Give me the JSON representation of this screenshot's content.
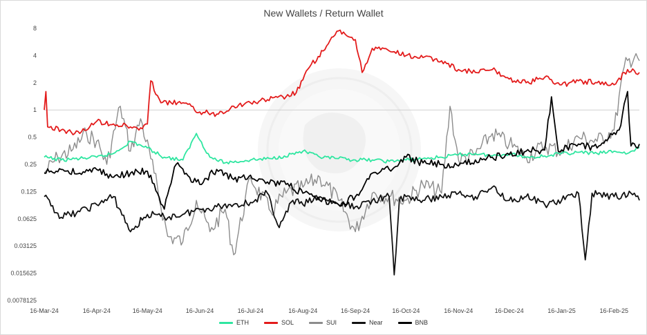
{
  "chart_data": {
    "type": "line",
    "title": "New Wallets / Return Wallet",
    "xlabel": "",
    "ylabel": "",
    "y_scale": "log2",
    "ylim": [
      0.0078125,
      8
    ],
    "y_ticks": [
      8,
      4,
      2,
      1,
      0.5,
      0.25,
      0.125,
      0.0625,
      0.03125,
      0.015625,
      0.0078125
    ],
    "y_tick_labels": [
      "8",
      "4",
      "2",
      "1",
      "0.5",
      "0.25",
      "0.125",
      "0.0625",
      "0.03125",
      "0.015625",
      "0.0078125"
    ],
    "x_range": [
      "2024-03-16",
      "2025-03-03"
    ],
    "x_ticks": [
      "2024-03-16",
      "2024-04-16",
      "2024-05-16",
      "2024-06-16",
      "2024-07-16",
      "2024-08-16",
      "2024-09-16",
      "2024-10-16",
      "2024-11-16",
      "2024-12-16",
      "2025-01-16",
      "2025-02-16"
    ],
    "x_tick_labels": [
      "16-Mar-24",
      "16-Apr-24",
      "16-May-24",
      "16-Jun-24",
      "16-Jul-24",
      "16-Aug-24",
      "16-Sep-24",
      "16-Oct-24",
      "16-Nov-24",
      "16-Dec-24",
      "16-Jan-25",
      "16-Feb-25"
    ],
    "reference_line": 1,
    "grid": "reference line at 1 only",
    "legend_position": "bottom",
    "series": [
      {
        "name": "ETH",
        "color": "#2ee6a0",
        "points": [
          [
            "2024-03-16",
            0.3
          ],
          [
            "2024-03-26",
            0.28
          ],
          [
            "2024-04-06",
            0.29
          ],
          [
            "2024-04-16",
            0.3
          ],
          [
            "2024-04-26",
            0.33
          ],
          [
            "2024-05-06",
            0.45
          ],
          [
            "2024-05-16",
            0.38
          ],
          [
            "2024-05-26",
            0.3
          ],
          [
            "2024-06-06",
            0.28
          ],
          [
            "2024-06-14",
            0.55
          ],
          [
            "2024-06-22",
            0.3
          ],
          [
            "2024-07-01",
            0.26
          ],
          [
            "2024-07-16",
            0.28
          ],
          [
            "2024-07-28",
            0.29
          ],
          [
            "2024-08-05",
            0.31
          ],
          [
            "2024-08-16",
            0.35
          ],
          [
            "2024-08-26",
            0.3
          ],
          [
            "2024-09-06",
            0.29
          ],
          [
            "2024-09-16",
            0.28
          ],
          [
            "2024-09-26",
            0.28
          ],
          [
            "2024-10-06",
            0.27
          ],
          [
            "2024-10-16",
            0.28
          ],
          [
            "2024-10-26",
            0.29
          ],
          [
            "2024-11-06",
            0.3
          ],
          [
            "2024-11-16",
            0.32
          ],
          [
            "2024-11-26",
            0.33
          ],
          [
            "2024-12-06",
            0.31
          ],
          [
            "2024-12-16",
            0.33
          ],
          [
            "2024-12-26",
            0.3
          ],
          [
            "2025-01-06",
            0.31
          ],
          [
            "2025-01-16",
            0.33
          ],
          [
            "2025-01-26",
            0.34
          ],
          [
            "2025-02-06",
            0.33
          ],
          [
            "2025-02-16",
            0.35
          ],
          [
            "2025-02-24",
            0.33
          ],
          [
            "2025-03-03",
            0.38
          ]
        ]
      },
      {
        "name": "SOL",
        "color": "#e31b1b",
        "points": [
          [
            "2024-03-16",
            1.0
          ],
          [
            "2024-03-17",
            1.6
          ],
          [
            "2024-03-18",
            0.65
          ],
          [
            "2024-03-26",
            0.6
          ],
          [
            "2024-04-06",
            0.55
          ],
          [
            "2024-04-16",
            0.75
          ],
          [
            "2024-04-26",
            0.7
          ],
          [
            "2024-05-06",
            0.65
          ],
          [
            "2024-05-13",
            0.62
          ],
          [
            "2024-05-16",
            0.7
          ],
          [
            "2024-05-18",
            2.1
          ],
          [
            "2024-05-24",
            1.2
          ],
          [
            "2024-06-06",
            1.2
          ],
          [
            "2024-06-16",
            0.95
          ],
          [
            "2024-06-26",
            0.9
          ],
          [
            "2024-07-06",
            1.1
          ],
          [
            "2024-07-16",
            1.2
          ],
          [
            "2024-07-26",
            1.3
          ],
          [
            "2024-08-06",
            1.4
          ],
          [
            "2024-08-12",
            1.55
          ],
          [
            "2024-08-20",
            3.0
          ],
          [
            "2024-08-28",
            4.5
          ],
          [
            "2024-09-06",
            7.5
          ],
          [
            "2024-09-16",
            6.0
          ],
          [
            "2024-09-20",
            2.6
          ],
          [
            "2024-09-26",
            4.8
          ],
          [
            "2024-10-06",
            4.5
          ],
          [
            "2024-10-16",
            4.0
          ],
          [
            "2024-10-26",
            3.8
          ],
          [
            "2024-11-06",
            3.5
          ],
          [
            "2024-11-16",
            2.8
          ],
          [
            "2024-11-26",
            2.6
          ],
          [
            "2024-12-06",
            2.8
          ],
          [
            "2024-12-16",
            2.2
          ],
          [
            "2024-12-26",
            2.0
          ],
          [
            "2025-01-06",
            2.3
          ],
          [
            "2025-01-16",
            1.9
          ],
          [
            "2025-01-26",
            2.1
          ],
          [
            "2025-02-06",
            2.0
          ],
          [
            "2025-02-16",
            1.9
          ],
          [
            "2025-02-24",
            2.8
          ],
          [
            "2025-03-03",
            2.6
          ]
        ]
      },
      {
        "name": "SUI",
        "color": "#8c8c8c",
        "points": [
          [
            "2024-03-16",
            0.2
          ],
          [
            "2024-03-24",
            0.3
          ],
          [
            "2024-04-01",
            0.35
          ],
          [
            "2024-04-10",
            0.55
          ],
          [
            "2024-04-16",
            0.45
          ],
          [
            "2024-04-22",
            0.25
          ],
          [
            "2024-04-30",
            1.1
          ],
          [
            "2024-05-06",
            0.35
          ],
          [
            "2024-05-12",
            0.8
          ],
          [
            "2024-05-20",
            0.2
          ],
          [
            "2024-05-28",
            0.04
          ],
          [
            "2024-06-06",
            0.035
          ],
          [
            "2024-06-14",
            0.1
          ],
          [
            "2024-06-22",
            0.045
          ],
          [
            "2024-07-01",
            0.08
          ],
          [
            "2024-07-06",
            0.025
          ],
          [
            "2024-07-16",
            0.18
          ],
          [
            "2024-07-28",
            0.075
          ],
          [
            "2024-08-06",
            0.12
          ],
          [
            "2024-08-16",
            0.14
          ],
          [
            "2024-08-26",
            0.18
          ],
          [
            "2024-09-06",
            0.1
          ],
          [
            "2024-09-16",
            0.045
          ],
          [
            "2024-09-26",
            0.12
          ],
          [
            "2024-10-06",
            0.11
          ],
          [
            "2024-10-16",
            0.1
          ],
          [
            "2024-10-26",
            0.15
          ],
          [
            "2024-11-06",
            0.12
          ],
          [
            "2024-11-11",
            1.1
          ],
          [
            "2024-11-16",
            0.28
          ],
          [
            "2024-11-26",
            0.32
          ],
          [
            "2024-12-06",
            0.55
          ],
          [
            "2024-12-16",
            0.42
          ],
          [
            "2024-12-26",
            0.3
          ],
          [
            "2025-01-06",
            0.4
          ],
          [
            "2025-01-16",
            0.35
          ],
          [
            "2025-01-26",
            0.5
          ],
          [
            "2025-02-06",
            0.45
          ],
          [
            "2025-02-16",
            0.6
          ],
          [
            "2025-02-22",
            3.0
          ],
          [
            "2025-03-01",
            4.2
          ],
          [
            "2025-03-03",
            3.5
          ]
        ]
      },
      {
        "name": "Near",
        "color": "#111111",
        "points": [
          [
            "2024-03-16",
            0.11
          ],
          [
            "2024-03-26",
            0.065
          ],
          [
            "2024-04-06",
            0.075
          ],
          [
            "2024-04-16",
            0.09
          ],
          [
            "2024-04-26",
            0.11
          ],
          [
            "2024-05-06",
            0.045
          ],
          [
            "2024-05-16",
            0.07
          ],
          [
            "2024-05-26",
            0.065
          ],
          [
            "2024-06-06",
            0.07
          ],
          [
            "2024-06-16",
            0.08
          ],
          [
            "2024-06-26",
            0.085
          ],
          [
            "2024-07-06",
            0.09
          ],
          [
            "2024-07-16",
            0.095
          ],
          [
            "2024-07-26",
            0.12
          ],
          [
            "2024-08-02",
            0.05
          ],
          [
            "2024-08-10",
            0.1
          ],
          [
            "2024-08-16",
            0.09
          ],
          [
            "2024-08-26",
            0.11
          ],
          [
            "2024-09-06",
            0.09
          ],
          [
            "2024-09-16",
            0.085
          ],
          [
            "2024-09-26",
            0.1
          ],
          [
            "2024-10-06",
            0.11
          ],
          [
            "2024-10-09",
            0.015
          ],
          [
            "2024-10-12",
            0.1
          ],
          [
            "2024-10-16",
            0.11
          ],
          [
            "2024-10-26",
            0.1
          ],
          [
            "2024-11-06",
            0.11
          ],
          [
            "2024-11-16",
            0.12
          ],
          [
            "2024-11-26",
            0.11
          ],
          [
            "2024-12-06",
            0.14
          ],
          [
            "2024-12-16",
            0.1
          ],
          [
            "2024-12-26",
            0.11
          ],
          [
            "2025-01-06",
            0.09
          ],
          [
            "2025-01-16",
            0.1
          ],
          [
            "2025-01-26",
            0.12
          ],
          [
            "2025-01-30",
            0.022
          ],
          [
            "2025-02-03",
            0.12
          ],
          [
            "2025-02-16",
            0.11
          ],
          [
            "2025-02-26",
            0.12
          ],
          [
            "2025-03-03",
            0.1
          ]
        ]
      },
      {
        "name": "BNB",
        "color": "#000000",
        "points": [
          [
            "2024-03-16",
            0.2
          ],
          [
            "2024-03-26",
            0.22
          ],
          [
            "2024-04-06",
            0.2
          ],
          [
            "2024-04-16",
            0.22
          ],
          [
            "2024-04-26",
            0.18
          ],
          [
            "2024-05-06",
            0.2
          ],
          [
            "2024-05-16",
            0.21
          ],
          [
            "2024-05-26",
            0.08
          ],
          [
            "2024-06-02",
            0.25
          ],
          [
            "2024-06-10",
            0.18
          ],
          [
            "2024-06-16",
            0.15
          ],
          [
            "2024-06-26",
            0.22
          ],
          [
            "2024-07-06",
            0.17
          ],
          [
            "2024-07-16",
            0.19
          ],
          [
            "2024-07-26",
            0.16
          ],
          [
            "2024-08-06",
            0.15
          ],
          [
            "2024-08-16",
            0.12
          ],
          [
            "2024-08-26",
            0.1
          ],
          [
            "2024-09-06",
            0.09
          ],
          [
            "2024-09-16",
            0.11
          ],
          [
            "2024-09-26",
            0.2
          ],
          [
            "2024-10-06",
            0.22
          ],
          [
            "2024-10-16",
            0.3
          ],
          [
            "2024-10-26",
            0.26
          ],
          [
            "2024-11-06",
            0.25
          ],
          [
            "2024-11-16",
            0.24
          ],
          [
            "2024-11-26",
            0.28
          ],
          [
            "2024-12-06",
            0.3
          ],
          [
            "2024-12-16",
            0.32
          ],
          [
            "2024-12-26",
            0.35
          ],
          [
            "2025-01-06",
            0.36
          ],
          [
            "2025-01-10",
            1.4
          ],
          [
            "2025-01-14",
            0.35
          ],
          [
            "2025-01-26",
            0.42
          ],
          [
            "2025-02-06",
            0.38
          ],
          [
            "2025-02-14",
            0.55
          ],
          [
            "2025-02-19",
            0.6
          ],
          [
            "2025-02-24",
            1.6
          ],
          [
            "2025-02-26",
            0.4
          ],
          [
            "2025-03-03",
            0.42
          ]
        ]
      }
    ]
  }
}
